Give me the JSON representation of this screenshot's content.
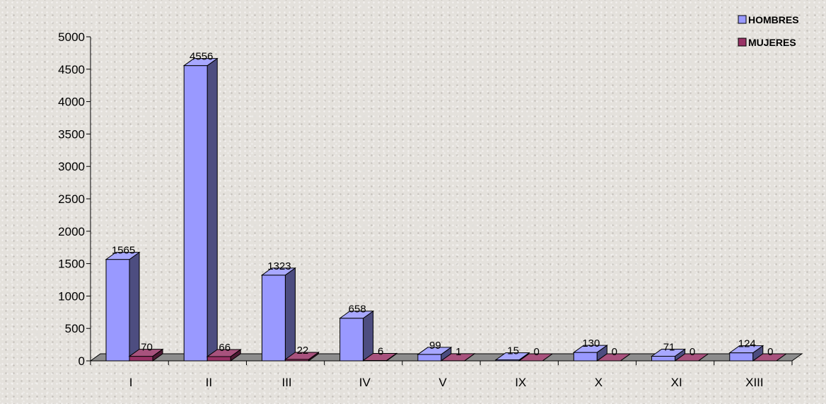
{
  "chart_data": {
    "type": "bar",
    "categories": [
      "I",
      "II",
      "III",
      "IV",
      "V",
      "IX",
      "X",
      "XI",
      "XIII"
    ],
    "series": [
      {
        "name": "HOMBRES",
        "color": "#9999ff",
        "values": [
          1565,
          4556,
          1323,
          658,
          99,
          15,
          130,
          71,
          124
        ]
      },
      {
        "name": "MUJERES",
        "color": "#993366",
        "values": [
          70,
          66,
          22,
          6,
          1,
          0,
          0,
          0,
          0
        ]
      }
    ],
    "y_ticks": [
      "0",
      "500",
      "1000",
      "1500",
      "2000",
      "2500",
      "3000",
      "3500",
      "4000",
      "4500",
      "5000"
    ],
    "ylim": [
      0,
      5000
    ],
    "grid": false,
    "legend_position": "top-right",
    "style": "3d-column"
  }
}
